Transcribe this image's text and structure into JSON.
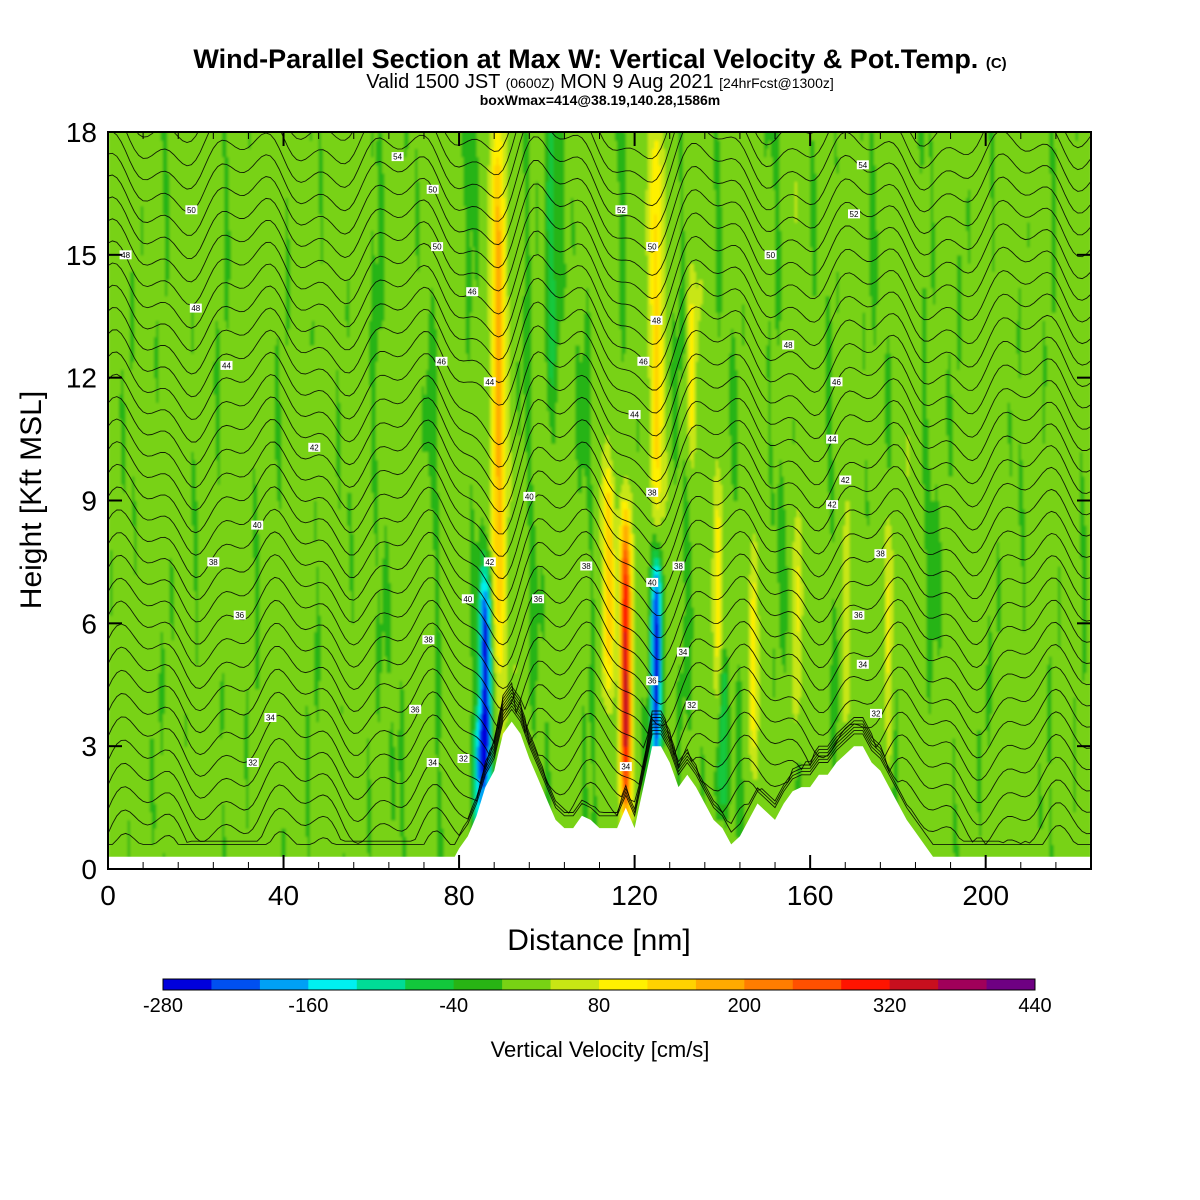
{
  "title": {
    "main": "Wind-Parallel Section at Max W: Vertical Velocity & Pot.Temp.",
    "copyright": "(C)",
    "valid_prefix": "Valid 1500 JST",
    "valid_utc": "(0600Z)",
    "valid_date": "MON 9 Aug 2021",
    "forecast": "[24hrFcst@1300z]",
    "boxmax": "boxWmax=414@38.19,140.28,1586m"
  },
  "chart_data": {
    "type": "heatmap",
    "title": "Wind-Parallel Section at Max W: Vertical Velocity & Pot.Temp.",
    "xlabel": "Distance [nm]",
    "ylabel": "Height [Kft MSL]",
    "xlim": [
      0,
      224
    ],
    "ylim": [
      0,
      18
    ],
    "x_ticks": [
      "0",
      "40",
      "80",
      "120",
      "160",
      "200"
    ],
    "y_ticks": [
      "0",
      "3",
      "6",
      "9",
      "12",
      "15",
      "18"
    ],
    "x_tick_values": [
      0,
      40,
      80,
      120,
      160,
      200
    ],
    "y_tick_values": [
      0,
      3,
      6,
      9,
      12,
      15,
      18
    ],
    "colorbar": {
      "title": "Vertical Velocity [cm/s]",
      "labels": [
        "-280",
        "-160",
        "-40",
        "80",
        "200",
        "320",
        "440"
      ],
      "label_values": [
        -280,
        -160,
        -40,
        80,
        200,
        320,
        440
      ],
      "bins": [
        -280,
        -240,
        -200,
        -160,
        -120,
        -80,
        -40,
        0,
        40,
        80,
        120,
        160,
        200,
        240,
        280,
        320,
        360,
        400,
        440
      ],
      "colors": [
        "#0000dc",
        "#0050f0",
        "#00a0f5",
        "#00f0f0",
        "#00dc96",
        "#12c83c",
        "#28b414",
        "#78d214",
        "#c8e614",
        "#fff000",
        "#ffd200",
        "#ffaa00",
        "#ff7d00",
        "#ff5000",
        "#ff1400",
        "#c80f1e",
        "#a0005a",
        "#6e0082"
      ]
    },
    "terrain_kft": [
      [
        0,
        0.3
      ],
      [
        79,
        0.3
      ],
      [
        80,
        0.5
      ],
      [
        82,
        0.8
      ],
      [
        84,
        1.3
      ],
      [
        86,
        2.0
      ],
      [
        88,
        2.4
      ],
      [
        90,
        3.3
      ],
      [
        92,
        3.6
      ],
      [
        94,
        3.3
      ],
      [
        96,
        2.7
      ],
      [
        98,
        2.2
      ],
      [
        100,
        1.7
      ],
      [
        102,
        1.2
      ],
      [
        104,
        1.0
      ],
      [
        106,
        1.0
      ],
      [
        108,
        1.3
      ],
      [
        110,
        1.2
      ],
      [
        112,
        1.0
      ],
      [
        114,
        1.0
      ],
      [
        116,
        1.0
      ],
      [
        118,
        1.5
      ],
      [
        120,
        1.0
      ],
      [
        122,
        2.0
      ],
      [
        124,
        3.0
      ],
      [
        126,
        3.0
      ],
      [
        128,
        2.6
      ],
      [
        130,
        2.0
      ],
      [
        132,
        2.3
      ],
      [
        134,
        2.0
      ],
      [
        136,
        1.6
      ],
      [
        138,
        1.2
      ],
      [
        140,
        1.0
      ],
      [
        142,
        0.6
      ],
      [
        144,
        0.8
      ],
      [
        146,
        1.2
      ],
      [
        148,
        1.6
      ],
      [
        150,
        1.4
      ],
      [
        152,
        1.2
      ],
      [
        154,
        1.6
      ],
      [
        156,
        1.9
      ],
      [
        158,
        2.0
      ],
      [
        160,
        2.0
      ],
      [
        162,
        2.3
      ],
      [
        164,
        2.3
      ],
      [
        166,
        2.6
      ],
      [
        168,
        2.8
      ],
      [
        170,
        3.0
      ],
      [
        172,
        3.0
      ],
      [
        174,
        2.6
      ],
      [
        176,
        2.4
      ],
      [
        178,
        2.0
      ],
      [
        180,
        1.6
      ],
      [
        182,
        1.2
      ],
      [
        184,
        0.9
      ],
      [
        186,
        0.6
      ],
      [
        188,
        0.3
      ],
      [
        224,
        0.3
      ]
    ],
    "updrafts": [
      {
        "x": 89,
        "w": 1.6,
        "ymin": 5,
        "ymax": 18,
        "peak": 160
      },
      {
        "x": 125,
        "w": 1.6,
        "ymin": 9,
        "ymax": 18,
        "peak": 120
      },
      {
        "x": 118,
        "w": 1.3,
        "ymin": 2,
        "ymax": 8,
        "peak": 330
      },
      {
        "x": 114,
        "w": 1.4,
        "ymin": 5,
        "ymax": 9,
        "peak": 120
      },
      {
        "x": 139,
        "w": 1.2,
        "ymin": 4,
        "ymax": 9,
        "peak": 90
      },
      {
        "x": 147,
        "w": 1.1,
        "ymin": 3,
        "ymax": 7,
        "peak": 80
      },
      {
        "x": 157,
        "w": 1.0,
        "ymin": 4,
        "ymax": 8,
        "peak": 70
      },
      {
        "x": 168,
        "w": 1.0,
        "ymin": 4,
        "ymax": 8,
        "peak": 70
      },
      {
        "x": 178,
        "w": 1.0,
        "ymin": 3,
        "ymax": 8,
        "peak": 70
      },
      {
        "x": 133,
        "w": 1.0,
        "ymin": 11,
        "ymax": 14,
        "peak": 70
      }
    ],
    "downdrafts": [
      {
        "x": 86,
        "w": 1.4,
        "ymin": 2.5,
        "ymax": 6.5,
        "peak": -280
      },
      {
        "x": 84.5,
        "w": 1.4,
        "ymin": 1,
        "ymax": 3,
        "peak": -150
      },
      {
        "x": 125,
        "w": 1.2,
        "ymin": 3,
        "ymax": 7,
        "peak": -280
      },
      {
        "x": 140,
        "w": 1.4,
        "ymin": 2,
        "ymax": 4.5,
        "peak": -120
      },
      {
        "x": 101,
        "w": 1.4,
        "ymin": 12,
        "ymax": 18,
        "peak": -90
      }
    ],
    "contour_labels": [
      {
        "text": "54",
        "x": 66,
        "y": 17.4
      },
      {
        "text": "50",
        "x": 19,
        "y": 16.1
      },
      {
        "text": "48",
        "x": 4,
        "y": 15.0
      },
      {
        "text": "48",
        "x": 20,
        "y": 13.7
      },
      {
        "text": "44",
        "x": 27,
        "y": 12.3
      },
      {
        "text": "42",
        "x": 47,
        "y": 10.3
      },
      {
        "text": "40",
        "x": 34,
        "y": 8.4
      },
      {
        "text": "38",
        "x": 24,
        "y": 7.5
      },
      {
        "text": "36",
        "x": 30,
        "y": 6.2
      },
      {
        "text": "34",
        "x": 37,
        "y": 3.7
      },
      {
        "text": "32",
        "x": 33,
        "y": 2.6
      },
      {
        "text": "50",
        "x": 74,
        "y": 16.6
      },
      {
        "text": "50",
        "x": 75,
        "y": 15.2
      },
      {
        "text": "46",
        "x": 83,
        "y": 14.1
      },
      {
        "text": "46",
        "x": 76,
        "y": 12.4
      },
      {
        "text": "44",
        "x": 87,
        "y": 11.9
      },
      {
        "text": "42",
        "x": 87,
        "y": 7.5
      },
      {
        "text": "40",
        "x": 82,
        "y": 6.6
      },
      {
        "text": "38",
        "x": 73,
        "y": 5.6
      },
      {
        "text": "36",
        "x": 70,
        "y": 3.9
      },
      {
        "text": "34",
        "x": 74,
        "y": 2.6
      },
      {
        "text": "32",
        "x": 81,
        "y": 2.7
      },
      {
        "text": "52",
        "x": 117,
        "y": 16.1
      },
      {
        "text": "50",
        "x": 124,
        "y": 15.2
      },
      {
        "text": "48",
        "x": 125,
        "y": 13.4
      },
      {
        "text": "46",
        "x": 122,
        "y": 12.4
      },
      {
        "text": "44",
        "x": 120,
        "y": 11.1
      },
      {
        "text": "40",
        "x": 96,
        "y": 9.1
      },
      {
        "text": "38",
        "x": 109,
        "y": 7.4
      },
      {
        "text": "36",
        "x": 98,
        "y": 6.6
      },
      {
        "text": "38",
        "x": 124,
        "y": 9.2
      },
      {
        "text": "40",
        "x": 124,
        "y": 7.0
      },
      {
        "text": "38",
        "x": 130,
        "y": 7.4
      },
      {
        "text": "36",
        "x": 124,
        "y": 4.6
      },
      {
        "text": "34",
        "x": 131,
        "y": 5.3
      },
      {
        "text": "32",
        "x": 133,
        "y": 4.0
      },
      {
        "text": "34",
        "x": 118,
        "y": 2.5
      },
      {
        "text": "54",
        "x": 172,
        "y": 17.2
      },
      {
        "text": "52",
        "x": 170,
        "y": 16.0
      },
      {
        "text": "50",
        "x": 151,
        "y": 15.0
      },
      {
        "text": "48",
        "x": 155,
        "y": 12.8
      },
      {
        "text": "46",
        "x": 166,
        "y": 11.9
      },
      {
        "text": "44",
        "x": 165,
        "y": 10.5
      },
      {
        "text": "42",
        "x": 168,
        "y": 9.5
      },
      {
        "text": "42",
        "x": 165,
        "y": 8.9
      },
      {
        "text": "38",
        "x": 176,
        "y": 7.7
      },
      {
        "text": "36",
        "x": 171,
        "y": 6.2
      },
      {
        "text": "34",
        "x": 172,
        "y": 5.0
      },
      {
        "text": "32",
        "x": 175,
        "y": 3.8
      }
    ]
  }
}
